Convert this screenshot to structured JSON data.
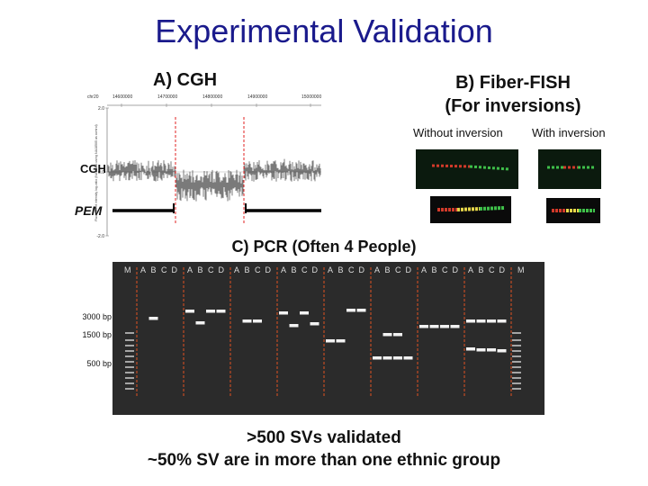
{
  "title": "Experimental Validation",
  "cgh": {
    "title": "A) CGH",
    "row_label_cgh": "CGH",
    "row_label_pem": "PEM",
    "x_axis_label": "chr20",
    "x_ticks": [
      "14600000",
      "14700000",
      "14800000",
      "14900000",
      "15000000"
    ],
    "y_ticks": [
      "2.0",
      "0.0",
      "-2.0"
    ],
    "y_axis_label": "Fluorescent intensity log-ratio (NA18156 using NA18505 as control)"
  },
  "fish": {
    "title_line1": "B) Fiber-FISH",
    "title_line2": "(For inversions)",
    "without_label": "Without inversion",
    "with_label": "With inversion"
  },
  "pcr": {
    "title": "C) PCR (Often 4 People)",
    "marker_label": "M",
    "lane_letters": [
      "A",
      "B",
      "C",
      "D"
    ],
    "size_labels": [
      "3000 bp",
      "1500 bp",
      "500 bp"
    ]
  },
  "summary": {
    "line1": ">500 SVs validated",
    "line2": "~50% SV are in more than one ethnic group"
  }
}
